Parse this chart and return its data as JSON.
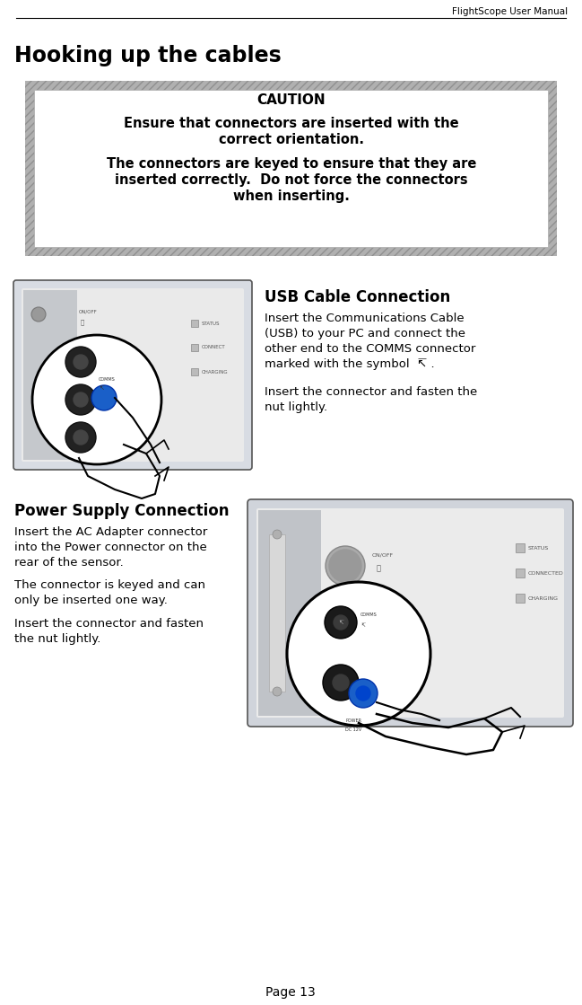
{
  "page_title": "FlightScope User Manual",
  "section_title": "Hooking up the cables",
  "caution_title": "CAUTION",
  "caution_line1": "Ensure that connectors are inserted with the",
  "caution_line2": "correct orientation.",
  "caution_line3": "The connectors are keyed to ensure that they are",
  "caution_line4": "inserted correctly.  Do not force the connectors",
  "caution_line5": "when inserting.",
  "usb_title": "USB Cable Connection",
  "usb_para1_l1": "Insert the Communications Cable",
  "usb_para1_l2": "(USB) to your PC and connect the",
  "usb_para1_l3": "other end to the COMMS connector",
  "usb_para1_l4": "marked with the symbol  ↸ .",
  "usb_para2_l1": "Insert the connector and fasten the",
  "usb_para2_l2": "nut lightly.",
  "power_title": "Power Supply Connection",
  "power_para1_l1": "Insert the AC Adapter connector",
  "power_para1_l2": "into the Power connector on the",
  "power_para1_l3": "rear of the sensor.",
  "power_para2_l1": "The connector is keyed and can",
  "power_para2_l2": "only be inserted one way.",
  "power_para3_l1": "Insert the connector and fasten",
  "power_para3_l2": "the nut lightly.",
  "page_number": "Page 13",
  "bg_color": "#ffffff",
  "text_color": "#000000",
  "panel_bg": "#dde0e5",
  "panel_white": "#f0f0f0",
  "panel_dark": "#1a1a1a",
  "panel_blue": "#1a5fc8",
  "panel_gray": "#888888"
}
